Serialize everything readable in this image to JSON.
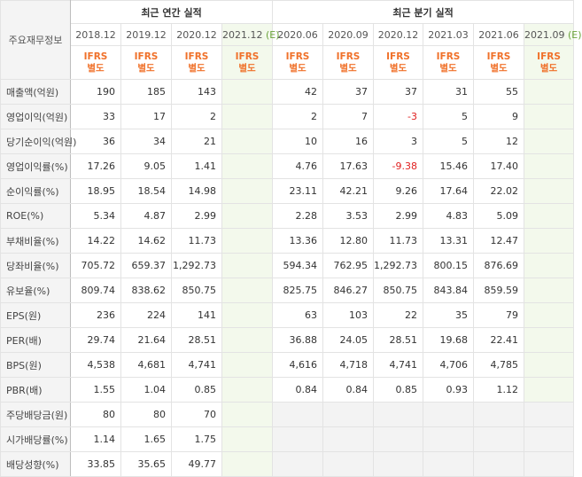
{
  "header": {
    "row_label": "주요재무정보",
    "annual_title": "최근 연간 실적",
    "quarter_title": "최근 분기 실적",
    "periods": [
      "2018.12",
      "2019.12",
      "2020.12",
      "2021.12 (E)",
      "2020.06",
      "2020.09",
      "2020.12",
      "2021.03",
      "2021.06",
      "2021.09 (E)"
    ],
    "ifrs_top": "IFRS",
    "ifrs_bottom": "별도"
  },
  "rows": [
    {
      "label": "매출액(억원)",
      "values": [
        "190",
        "185",
        "143",
        "",
        "42",
        "37",
        "37",
        "31",
        "55",
        ""
      ]
    },
    {
      "label": "영업이익(억원)",
      "values": [
        "33",
        "17",
        "2",
        "",
        "2",
        "7",
        "-3",
        "5",
        "9",
        ""
      ]
    },
    {
      "label": "당기순이익(억원)",
      "values": [
        "36",
        "34",
        "21",
        "",
        "10",
        "16",
        "3",
        "5",
        "12",
        ""
      ]
    },
    {
      "label": "영업이익률(%)",
      "values": [
        "17.26",
        "9.05",
        "1.41",
        "",
        "4.76",
        "17.63",
        "-9.38",
        "15.46",
        "17.40",
        ""
      ]
    },
    {
      "label": "순이익률(%)",
      "values": [
        "18.95",
        "18.54",
        "14.98",
        "",
        "23.11",
        "42.21",
        "9.26",
        "17.64",
        "22.02",
        ""
      ]
    },
    {
      "label": "ROE(%)",
      "values": [
        "5.34",
        "4.87",
        "2.99",
        "",
        "2.28",
        "3.53",
        "2.99",
        "4.83",
        "5.09",
        ""
      ]
    },
    {
      "label": "부채비율(%)",
      "values": [
        "14.22",
        "14.62",
        "11.73",
        "",
        "13.36",
        "12.80",
        "11.73",
        "13.31",
        "12.47",
        ""
      ]
    },
    {
      "label": "당좌비율(%)",
      "values": [
        "705.72",
        "659.37",
        "1,292.73",
        "",
        "594.34",
        "762.95",
        "1,292.73",
        "800.15",
        "876.69",
        ""
      ]
    },
    {
      "label": "유보율(%)",
      "values": [
        "809.74",
        "838.62",
        "850.75",
        "",
        "825.75",
        "846.27",
        "850.75",
        "843.84",
        "859.59",
        ""
      ]
    },
    {
      "label": "EPS(원)",
      "values": [
        "236",
        "224",
        "141",
        "",
        "63",
        "103",
        "22",
        "35",
        "79",
        ""
      ]
    },
    {
      "label": "PER(배)",
      "values": [
        "29.74",
        "21.64",
        "28.51",
        "",
        "36.88",
        "24.05",
        "28.51",
        "19.68",
        "22.41",
        ""
      ]
    },
    {
      "label": "BPS(원)",
      "values": [
        "4,538",
        "4,681",
        "4,741",
        "",
        "4,616",
        "4,718",
        "4,741",
        "4,706",
        "4,785",
        ""
      ]
    },
    {
      "label": "PBR(배)",
      "values": [
        "1.55",
        "1.04",
        "0.85",
        "",
        "0.84",
        "0.84",
        "0.85",
        "0.93",
        "1.12",
        ""
      ]
    },
    {
      "label": "주당배당금(원)",
      "values": [
        "80",
        "80",
        "70",
        "",
        "",
        "",
        "",
        "",
        "",
        ""
      ]
    },
    {
      "label": "시가배당률(%)",
      "values": [
        "1.14",
        "1.65",
        "1.75",
        "",
        "",
        "",
        "",
        "",
        "",
        ""
      ]
    },
    {
      "label": "배당성향(%)",
      "values": [
        "33.85",
        "35.65",
        "49.77",
        "",
        "",
        "",
        "",
        "",
        "",
        ""
      ]
    }
  ],
  "colors": {
    "ifrs": "#f0712a",
    "negative": "#e02020",
    "estimate_bg": "#f3f9ec"
  }
}
